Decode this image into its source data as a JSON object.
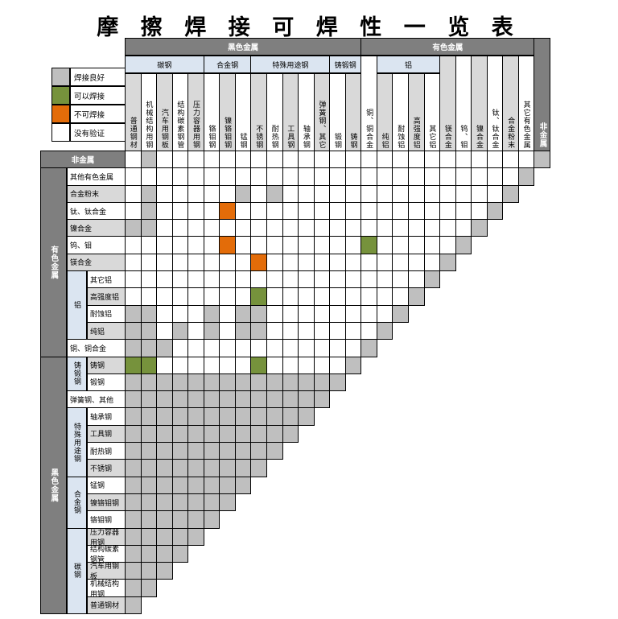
{
  "title": "摩 擦 焊 接 可 焊 性 一 览 表",
  "legend": [
    {
      "label": "焊接良好",
      "code": "g"
    },
    {
      "label": "可以焊接",
      "code": "G"
    },
    {
      "label": "不可焊接",
      "code": "O"
    },
    {
      "label": "没有验证",
      "code": "w"
    }
  ],
  "colors": {
    "good": "#bfbfbf",
    "can_weld": "#76923c",
    "cannot_weld": "#e36c09",
    "unverified": "#ffffff",
    "band_dark": "#7f7f7f",
    "band_light": "#dbe5f1",
    "header_gray": "#d9d9d9"
  },
  "chart_data": {
    "type": "heatmap",
    "legend_meaning": {
      "g": "焊接良好",
      "G": "可以焊接",
      "O": "不可焊接",
      "w": "没有验证"
    },
    "col_groups": [
      {
        "label": "黑色金属",
        "from": 1,
        "to": 15
      },
      {
        "label": "有色金属",
        "from": 16,
        "to": 26
      },
      {
        "label": "非金属",
        "from": 27,
        "to": 27
      }
    ],
    "col_subgroups": [
      {
        "label": "碳钢",
        "from": 1,
        "to": 5
      },
      {
        "label": "合金钢",
        "from": 6,
        "to": 8
      },
      {
        "label": "特殊用途钢",
        "from": 9,
        "to": 13
      },
      {
        "label": "铸锻钢",
        "from": 14,
        "to": 15
      },
      {
        "label": "铝",
        "from": 17,
        "to": 20
      }
    ],
    "columns": [
      "普通钢材",
      "机械结构用钢",
      "汽车用钢板",
      "结构碳素钢管",
      "压力容器用钢",
      "铬钼钢",
      "镍铬钼钢",
      "锰钢",
      "不锈钢",
      "耐热钢",
      "工具钢",
      "轴承钢",
      "弹簧钢、其它",
      "锻钢",
      "铸钢",
      "铜、铜合金",
      "纯铝",
      "耐蚀铝",
      "高强度铝",
      "其它铝",
      "镁合金",
      "钨、钼",
      "镍合金",
      "钛、钛合金",
      "合金粉末",
      "其它有色金属",
      "非金属"
    ],
    "row_groups": [
      {
        "label": "非金属",
        "from": 1,
        "to": 1
      },
      {
        "label": "有色金属",
        "from": 2,
        "to": 12
      },
      {
        "label": "黑色金属",
        "from": 13,
        "to": 27
      }
    ],
    "row_subgroups": [
      {
        "label": "铝",
        "from": 8,
        "to": 11
      },
      {
        "label": "铸锻钢",
        "from": 13,
        "to": 14
      },
      {
        "label": "特殊用途钢",
        "from": 16,
        "to": 19
      },
      {
        "label": "合金钢",
        "from": 20,
        "to": 22
      },
      {
        "label": "碳钢",
        "from": 23,
        "to": 27
      }
    ],
    "rows": [
      {
        "label": "非金属",
        "cells": "wgwwwwwwwwwwwwwwwwwwwwwwwwg"
      },
      {
        "label": "其他有色金属",
        "cells": "wwwwwwwwwwwwwwwwwwwwwwwwwg"
      },
      {
        "label": "合金粉末",
        "cells": "wgwwwwwgwgwwwwwwwwwwwwwwg"
      },
      {
        "label": "钛、钛合金",
        "cells": "wgwwwwOwwwwwwwwwwwwwwwwg"
      },
      {
        "label": "镍合金",
        "cells": "ggwwwwwwwwwwwwwwwwwwwwg"
      },
      {
        "label": "钨、钼",
        "cells": "wwwwwwOwwwwwwwwGwwwwwg"
      },
      {
        "label": "镁合金",
        "cells": "wwwwwwwwOwwwwwwwwwwwg"
      },
      {
        "label": "其它铝",
        "cells": "wwwwwwwwwwwwwwwwwwwg"
      },
      {
        "label": "高强度铝",
        "cells": "wwwwwwwwGwwwwwwwwwg"
      },
      {
        "label": "耐蚀铝",
        "cells": "ggwwwgwggwwwwwwwwg"
      },
      {
        "label": "纯铝",
        "cells": "ggwgwgwggwwwwwwwg"
      },
      {
        "label": "铜、铜合金",
        "cells": "gggwwwwwwwwwwwwg"
      },
      {
        "label": "铸钢",
        "cells": "GGwwwwwwGwwwwwg"
      },
      {
        "label": "锻钢",
        "cells": "gggggggggggggg"
      },
      {
        "label": "弹簧钢、其他",
        "cells": "ggggggggggggg"
      },
      {
        "label": "轴承钢",
        "cells": "gggggggggggg"
      },
      {
        "label": "工具钢",
        "cells": "ggggggggggg"
      },
      {
        "label": "耐热钢",
        "cells": "gggggggggg"
      },
      {
        "label": "不锈钢",
        "cells": "ggggggggg"
      },
      {
        "label": "锰钢",
        "cells": "gggggggg"
      },
      {
        "label": "镍铬钼钢",
        "cells": "ggggggg"
      },
      {
        "label": "铬钼钢",
        "cells": "gggggg"
      },
      {
        "label": "压力容器用钢",
        "cells": "ggggg"
      },
      {
        "label": "结构碳素钢管",
        "cells": "gggg"
      },
      {
        "label": "汽车用钢板",
        "cells": "ggg"
      },
      {
        "label": "机械结构用钢",
        "cells": "gg"
      },
      {
        "label": "普通钢材",
        "cells": "g"
      }
    ]
  }
}
